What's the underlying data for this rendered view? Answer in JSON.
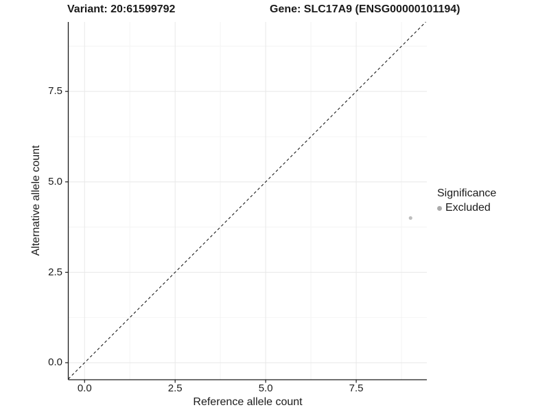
{
  "titles": {
    "variant": "Variant: 20:61599792",
    "gene": "Gene: SLC17A9 (ENSG00000101194)"
  },
  "chart_data": {
    "type": "scatter",
    "xlabel": "Reference allele count",
    "ylabel": "Alternative allele count",
    "xlim": [
      -0.45,
      9.45
    ],
    "ylim": [
      -0.47,
      9.42
    ],
    "x_ticks": {
      "values": [
        0,
        2.5,
        5,
        7.5
      ],
      "labels": [
        "0.0",
        "2.5",
        "5.0",
        "7.5"
      ]
    },
    "y_ticks": {
      "values": [
        0,
        2.5,
        5,
        7.5
      ],
      "labels": [
        "0.0",
        "2.5",
        "5.0",
        "7.5"
      ]
    },
    "minor_tick_values": [
      1.25,
      3.75,
      6.25,
      8.75
    ],
    "grid": "major and minor gridlines, very light gray, white panel background",
    "reference_line": {
      "type": "identity y=x",
      "style": "dashed",
      "color": "#1a1a1a"
    },
    "series": [
      {
        "name": "Excluded",
        "color": "#bebebe",
        "points": [
          {
            "x": 9,
            "y": 4
          }
        ]
      }
    ],
    "legend": {
      "title": "Significance",
      "position": "right",
      "items": [
        {
          "label": "Excluded",
          "color": "#ababab"
        }
      ]
    }
  },
  "colors": {
    "background": "#ffffff",
    "axis": "#1a1a1a",
    "grid_major": "#e8e8e8",
    "grid_minor": "#f4f4f4",
    "point": "#bebebe",
    "legend_key": "#ababab",
    "identity_line": "#1a1a1a"
  }
}
